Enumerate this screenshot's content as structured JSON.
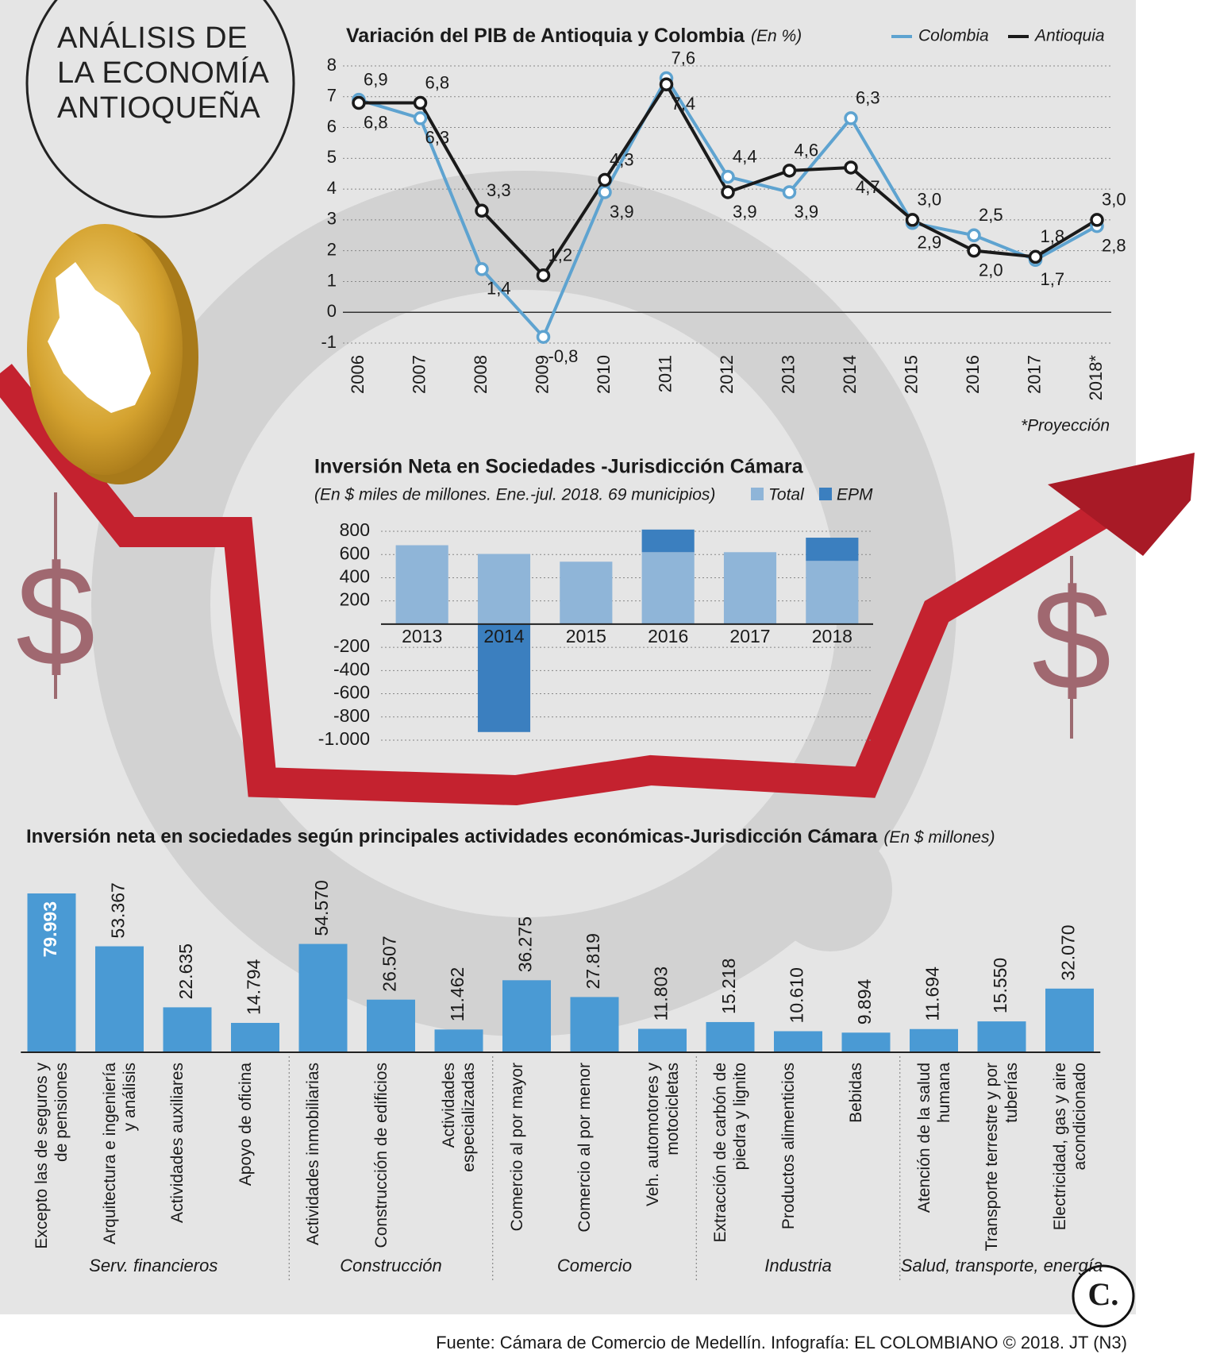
{
  "header": {
    "title": "ANÁLISIS DE LA ECONOMÍA ANTIOQUEÑA"
  },
  "chart_data": [
    {
      "type": "line",
      "title": "Variación del PIB de Antioquia y Colombia",
      "subtitle": "(En %)",
      "categories": [
        "2006",
        "2007",
        "2008",
        "2009",
        "2010",
        "2011",
        "2012",
        "2013",
        "2014",
        "2015",
        "2016",
        "2017",
        "2018*"
      ],
      "series": [
        {
          "name": "Colombia",
          "color": "#5ea3d0",
          "values": [
            6.9,
            6.3,
            1.4,
            -0.8,
            3.9,
            7.6,
            4.4,
            3.9,
            6.3,
            2.9,
            2.5,
            1.7,
            2.8
          ],
          "value_labels": [
            "6,9",
            "6,3",
            "1,4",
            "-0,8",
            "3,9",
            "7,6",
            "4,4",
            "3,9",
            "6,3",
            "2,9",
            "2,5",
            "1,7",
            "2,8"
          ]
        },
        {
          "name": "Antioquia",
          "color": "#1a1a1a",
          "values": [
            6.8,
            6.8,
            3.3,
            1.2,
            4.3,
            7.4,
            3.9,
            4.6,
            4.7,
            3.0,
            2.0,
            1.8,
            3.0
          ],
          "value_labels": [
            "6,8",
            "6,8",
            "3,3",
            "1,2",
            "4,3",
            "7,4",
            "3,9",
            "4,6",
            "4,7",
            "3,0",
            "2,0",
            "1,8",
            "3,0"
          ]
        }
      ],
      "ylim": [
        -1,
        8
      ],
      "yticks": [
        -1,
        0,
        1,
        2,
        3,
        4,
        5,
        6,
        7,
        8
      ],
      "grid": true,
      "legend": "top-right",
      "note": "*Proyección"
    },
    {
      "type": "bar",
      "title": "Inversión Neta en Sociedades -Jurisdicción Cámara",
      "subtitle": "(En $ miles de millones. Ene.-jul. 2018. 69 municipios)",
      "categories": [
        "2013",
        "2014",
        "2015",
        "2016",
        "2017",
        "2018"
      ],
      "series": [
        {
          "name": "Total",
          "color": "#8fb5d8",
          "values": [
            680,
            605,
            538,
            620,
            620,
            545
          ]
        },
        {
          "name": "EPM",
          "color": "#3b7fbf",
          "values": [
            null,
            -930,
            null,
            195,
            null,
            200
          ]
        }
      ],
      "ylim": [
        -1000,
        800
      ],
      "yticks": [
        800,
        600,
        400,
        200,
        -200,
        -400,
        -600,
        -800,
        {
          "value": -1000,
          "label": "-1.000"
        }
      ],
      "grid": true,
      "legend": "top-right"
    },
    {
      "type": "bar",
      "title": "Inversión neta en sociedades según principales actividades económicas-Jurisdicción Cámara",
      "subtitle": "(En $ millones)",
      "color": "#4a9ad4",
      "groups": [
        {
          "name": "Serv. financieros",
          "categories": [
            "Excepto las de seguros y de pensiones",
            "Arquitectura e ingeniería y análisis",
            "Actividades auxiliares",
            "Apoyo de oficina"
          ],
          "values": [
            79993,
            53367,
            22635,
            14794
          ],
          "value_labels": [
            "79.993",
            "53.367",
            "22.635",
            "14.794"
          ]
        },
        {
          "name": "Construcción",
          "categories": [
            "Actividades inmobiliarias",
            "Construcción de edificios",
            "Actividades especializadas"
          ],
          "values": [
            54570,
            26507,
            11462
          ],
          "value_labels": [
            "54.570",
            "26.507",
            "11.462"
          ]
        },
        {
          "name": "Comercio",
          "categories": [
            "Comercio al por mayor",
            "Comercio al por menor",
            "Veh. automotores y motocicletas"
          ],
          "values": [
            36275,
            27819,
            11803
          ],
          "value_labels": [
            "36.275",
            "27.819",
            "11.803"
          ]
        },
        {
          "name": "Industria",
          "categories": [
            "Extracción de carbón de piedra y lignito",
            "Productos alimenticios",
            "Bebidas"
          ],
          "values": [
            15218,
            10610,
            9894
          ],
          "value_labels": [
            "15.218",
            "10.610",
            "9.894"
          ]
        },
        {
          "name": "Salud, transporte, energía",
          "categories": [
            "Atención de la salud humana",
            "Transporte terrestre y por tuberías",
            "Electricidad, gas y aire acondicionado"
          ],
          "values": [
            11694,
            15550,
            32070
          ],
          "value_labels": [
            "11.694",
            "15.550",
            "32.070"
          ]
        }
      ]
    }
  ],
  "decoration": {
    "currency_symbol": "$",
    "logo": "C."
  },
  "footer": {
    "source": "Fuente: Cámara de Comercio de Medellín. Infografía: EL COLOMBIANO © 2018. JT (N3)"
  }
}
